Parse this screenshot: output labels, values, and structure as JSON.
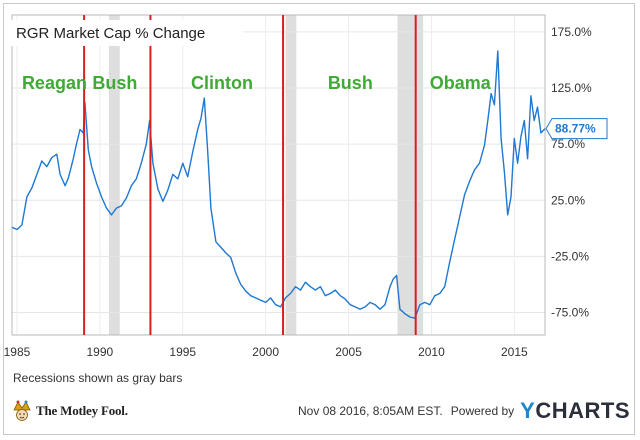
{
  "chart_data": {
    "type": "line",
    "title": "RGR Market Cap % Change",
    "xlabel": "",
    "ylabel": "",
    "x_range": [
      1984.7,
      2016.85
    ],
    "ylim": [
      -95,
      190
    ],
    "x_ticks": [
      1985,
      1990,
      1995,
      2000,
      2005,
      2010,
      2015
    ],
    "x_tick_labels": [
      "1985",
      "1990",
      "1995",
      "2000",
      "2005",
      "2010",
      "2015"
    ],
    "y_ticks": [
      175,
      125,
      75,
      25,
      -25,
      -75
    ],
    "y_tick_labels": [
      "175.0%",
      "125.0%",
      "75.0%",
      "25.0%",
      "-25.0%",
      "-75.0%"
    ],
    "grid": true,
    "last_value_label": "88.77%",
    "line_color": "#1f78d1",
    "recession_color": "#dedede",
    "divider_color": "#d62020",
    "era_label_color": "#3faa35",
    "recessions": [
      [
        1990.55,
        1991.2
      ],
      [
        2001.2,
        2001.85
      ],
      [
        2007.95,
        2009.5
      ]
    ],
    "presidency_dividers": [
      1989.05,
      1993.05,
      2001.05,
      2009.05
    ],
    "eras": [
      {
        "label": "Reagan",
        "x": 1985.3
      },
      {
        "label": "Bush",
        "x": 1989.55
      },
      {
        "label": "Clinton",
        "x": 1995.5
      },
      {
        "label": "Bush",
        "x": 2003.75
      },
      {
        "label": "Obama",
        "x": 2009.9
      }
    ],
    "series": [
      {
        "values": [
          [
            1984.7,
            1
          ],
          [
            1985.0,
            -1
          ],
          [
            1985.3,
            3
          ],
          [
            1985.6,
            28
          ],
          [
            1985.9,
            36
          ],
          [
            1986.2,
            48
          ],
          [
            1986.5,
            60
          ],
          [
            1986.8,
            55
          ],
          [
            1987.1,
            63
          ],
          [
            1987.4,
            66
          ],
          [
            1987.6,
            48
          ],
          [
            1987.9,
            38
          ],
          [
            1988.1,
            45
          ],
          [
            1988.4,
            62
          ],
          [
            1988.6,
            76
          ],
          [
            1988.8,
            88
          ],
          [
            1989.0,
            85
          ],
          [
            1989.1,
            112
          ],
          [
            1989.3,
            70
          ],
          [
            1989.5,
            55
          ],
          [
            1989.8,
            40
          ],
          [
            1990.1,
            28
          ],
          [
            1990.4,
            18
          ],
          [
            1990.7,
            12
          ],
          [
            1991.0,
            18
          ],
          [
            1991.3,
            20
          ],
          [
            1991.6,
            27
          ],
          [
            1991.9,
            38
          ],
          [
            1992.2,
            44
          ],
          [
            1992.5,
            58
          ],
          [
            1992.8,
            75
          ],
          [
            1993.0,
            96
          ],
          [
            1993.2,
            58
          ],
          [
            1993.5,
            35
          ],
          [
            1993.8,
            24
          ],
          [
            1994.1,
            34
          ],
          [
            1994.4,
            48
          ],
          [
            1994.7,
            44
          ],
          [
            1995.0,
            58
          ],
          [
            1995.3,
            46
          ],
          [
            1995.6,
            68
          ],
          [
            1995.9,
            88
          ],
          [
            1996.1,
            98
          ],
          [
            1996.3,
            116
          ],
          [
            1996.5,
            70
          ],
          [
            1996.7,
            18
          ],
          [
            1997.0,
            -12
          ],
          [
            1997.3,
            -17
          ],
          [
            1997.6,
            -22
          ],
          [
            1997.9,
            -26
          ],
          [
            1998.2,
            -40
          ],
          [
            1998.5,
            -50
          ],
          [
            1998.8,
            -56
          ],
          [
            1999.1,
            -60
          ],
          [
            1999.4,
            -62
          ],
          [
            1999.7,
            -64
          ],
          [
            2000.0,
            -66
          ],
          [
            2000.3,
            -62
          ],
          [
            2000.6,
            -68
          ],
          [
            2000.9,
            -70
          ],
          [
            2001.2,
            -62
          ],
          [
            2001.5,
            -58
          ],
          [
            2001.8,
            -52
          ],
          [
            2002.1,
            -55
          ],
          [
            2002.4,
            -48
          ],
          [
            2002.7,
            -52
          ],
          [
            2003.0,
            -55
          ],
          [
            2003.3,
            -52
          ],
          [
            2003.6,
            -60
          ],
          [
            2003.9,
            -58
          ],
          [
            2004.2,
            -55
          ],
          [
            2004.5,
            -60
          ],
          [
            2004.8,
            -63
          ],
          [
            2005.1,
            -68
          ],
          [
            2005.4,
            -70
          ],
          [
            2005.7,
            -72
          ],
          [
            2006.0,
            -70
          ],
          [
            2006.3,
            -66
          ],
          [
            2006.6,
            -68
          ],
          [
            2006.9,
            -72
          ],
          [
            2007.2,
            -68
          ],
          [
            2007.5,
            -52
          ],
          [
            2007.7,
            -45
          ],
          [
            2007.9,
            -42
          ],
          [
            2008.1,
            -72
          ],
          [
            2008.4,
            -76
          ],
          [
            2008.7,
            -79
          ],
          [
            2009.0,
            -80
          ],
          [
            2009.3,
            -68
          ],
          [
            2009.6,
            -66
          ],
          [
            2009.9,
            -68
          ],
          [
            2010.2,
            -60
          ],
          [
            2010.5,
            -58
          ],
          [
            2010.8,
            -52
          ],
          [
            2011.1,
            -30
          ],
          [
            2011.4,
            -10
          ],
          [
            2011.7,
            10
          ],
          [
            2012.0,
            30
          ],
          [
            2012.3,
            42
          ],
          [
            2012.6,
            52
          ],
          [
            2012.9,
            58
          ],
          [
            2013.2,
            74
          ],
          [
            2013.4,
            96
          ],
          [
            2013.6,
            120
          ],
          [
            2013.8,
            110
          ],
          [
            2014.0,
            158
          ],
          [
            2014.2,
            80
          ],
          [
            2014.4,
            50
          ],
          [
            2014.6,
            12
          ],
          [
            2014.8,
            28
          ],
          [
            2015.0,
            80
          ],
          [
            2015.2,
            58
          ],
          [
            2015.4,
            82
          ],
          [
            2015.6,
            96
          ],
          [
            2015.8,
            62
          ],
          [
            2016.0,
            118
          ],
          [
            2016.2,
            96
          ],
          [
            2016.4,
            108
          ],
          [
            2016.6,
            85
          ],
          [
            2016.85,
            88.77
          ]
        ]
      }
    ]
  },
  "footer": {
    "note": "Recessions shown as gray bars",
    "timestamp": "Nov 08 2016, 8:05AM EST.",
    "powered_by": "Powered by",
    "ycharts_y": "Y",
    "ycharts_rest": "CHARTS",
    "fool_brand": "The Motley Fool."
  }
}
